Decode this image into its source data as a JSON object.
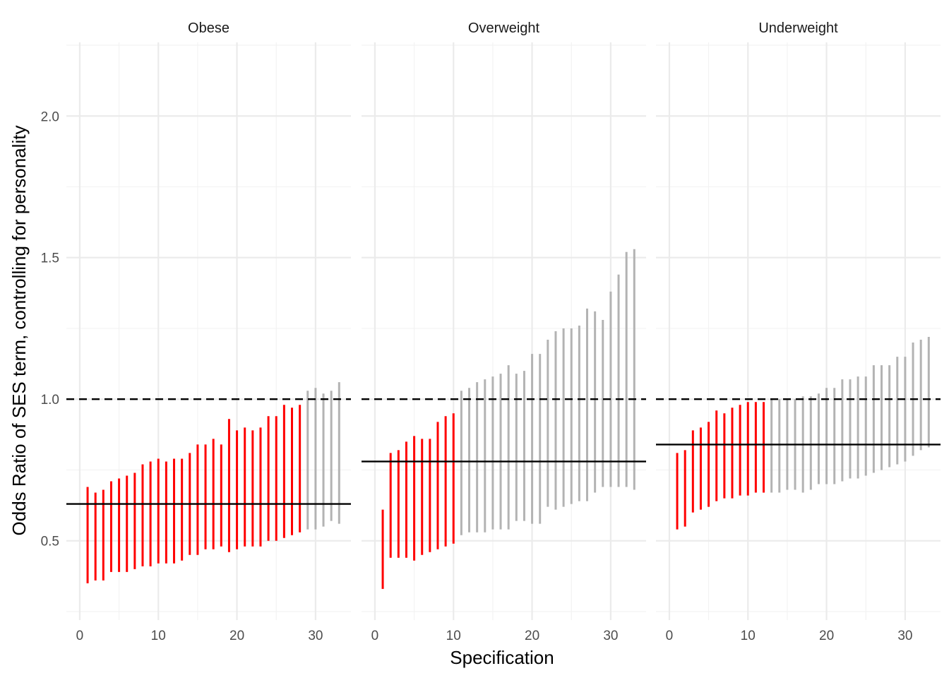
{
  "chart_data": {
    "type": "errorbar",
    "xlabel": "Specification",
    "ylabel": "Odds Ratio of SES term, controlling for personality",
    "xlim": [
      -1.7,
      34.5
    ],
    "ylim": [
      0.22,
      2.26
    ],
    "x_ticks": [
      0,
      10,
      20,
      30
    ],
    "y_ticks": [
      0.5,
      1.0,
      1.5,
      2.0
    ],
    "y_tick_labels": [
      "0.5",
      "1.0",
      "1.5",
      "2.0"
    ],
    "reference_line": 1.0,
    "grid": true,
    "colors": {
      "significant": "#ff0000",
      "nonsignificant": "#b3b3b3",
      "estimate_line": "#000000"
    },
    "facets": [
      {
        "title": "Obese",
        "median_estimate": 0.63,
        "significant_through": 28,
        "intervals": [
          [
            0.35,
            0.69
          ],
          [
            0.36,
            0.67
          ],
          [
            0.36,
            0.68
          ],
          [
            0.39,
            0.71
          ],
          [
            0.39,
            0.72
          ],
          [
            0.39,
            0.73
          ],
          [
            0.4,
            0.74
          ],
          [
            0.41,
            0.77
          ],
          [
            0.41,
            0.78
          ],
          [
            0.42,
            0.79
          ],
          [
            0.42,
            0.78
          ],
          [
            0.42,
            0.79
          ],
          [
            0.43,
            0.79
          ],
          [
            0.45,
            0.81
          ],
          [
            0.45,
            0.84
          ],
          [
            0.47,
            0.84
          ],
          [
            0.47,
            0.86
          ],
          [
            0.48,
            0.84
          ],
          [
            0.46,
            0.93
          ],
          [
            0.47,
            0.89
          ],
          [
            0.48,
            0.9
          ],
          [
            0.48,
            0.89
          ],
          [
            0.48,
            0.9
          ],
          [
            0.5,
            0.94
          ],
          [
            0.5,
            0.94
          ],
          [
            0.51,
            0.98
          ],
          [
            0.52,
            0.97
          ],
          [
            0.53,
            0.98
          ],
          [
            0.54,
            1.03
          ],
          [
            0.54,
            1.04
          ],
          [
            0.55,
            1.02
          ],
          [
            0.57,
            1.03
          ],
          [
            0.56,
            1.06
          ]
        ]
      },
      {
        "title": "Overweight",
        "median_estimate": 0.78,
        "significant_through": 10,
        "intervals": [
          [
            0.33,
            0.61
          ],
          [
            0.44,
            0.81
          ],
          [
            0.44,
            0.82
          ],
          [
            0.44,
            0.85
          ],
          [
            0.43,
            0.87
          ],
          [
            0.45,
            0.86
          ],
          [
            0.46,
            0.86
          ],
          [
            0.47,
            0.92
          ],
          [
            0.48,
            0.94
          ],
          [
            0.49,
            0.95
          ],
          [
            0.52,
            1.03
          ],
          [
            0.53,
            1.04
          ],
          [
            0.53,
            1.06
          ],
          [
            0.53,
            1.07
          ],
          [
            0.54,
            1.08
          ],
          [
            0.54,
            1.09
          ],
          [
            0.54,
            1.12
          ],
          [
            0.57,
            1.09
          ],
          [
            0.57,
            1.1
          ],
          [
            0.56,
            1.16
          ],
          [
            0.56,
            1.16
          ],
          [
            0.62,
            1.21
          ],
          [
            0.61,
            1.24
          ],
          [
            0.62,
            1.25
          ],
          [
            0.63,
            1.25
          ],
          [
            0.64,
            1.26
          ],
          [
            0.64,
            1.32
          ],
          [
            0.67,
            1.31
          ],
          [
            0.69,
            1.28
          ],
          [
            0.69,
            1.38
          ],
          [
            0.69,
            1.44
          ],
          [
            0.69,
            1.52
          ],
          [
            0.68,
            1.53
          ]
        ]
      },
      {
        "title": "Underweight",
        "median_estimate": 0.84,
        "significant_through": 12,
        "intervals": [
          [
            0.54,
            0.81
          ],
          [
            0.55,
            0.82
          ],
          [
            0.6,
            0.89
          ],
          [
            0.61,
            0.9
          ],
          [
            0.62,
            0.92
          ],
          [
            0.64,
            0.96
          ],
          [
            0.65,
            0.95
          ],
          [
            0.65,
            0.97
          ],
          [
            0.66,
            0.98
          ],
          [
            0.66,
            0.99
          ],
          [
            0.67,
            0.99
          ],
          [
            0.67,
            0.99
          ],
          [
            0.67,
            1.0
          ],
          [
            0.67,
            1.0
          ],
          [
            0.68,
            1.0
          ],
          [
            0.68,
            1.0
          ],
          [
            0.67,
            1.01
          ],
          [
            0.68,
            1.01
          ],
          [
            0.7,
            1.02
          ],
          [
            0.7,
            1.04
          ],
          [
            0.7,
            1.04
          ],
          [
            0.71,
            1.07
          ],
          [
            0.72,
            1.07
          ],
          [
            0.72,
            1.08
          ],
          [
            0.73,
            1.08
          ],
          [
            0.74,
            1.12
          ],
          [
            0.75,
            1.12
          ],
          [
            0.76,
            1.12
          ],
          [
            0.77,
            1.15
          ],
          [
            0.78,
            1.15
          ],
          [
            0.8,
            1.2
          ],
          [
            0.82,
            1.21
          ],
          [
            0.83,
            1.22
          ]
        ]
      }
    ]
  }
}
